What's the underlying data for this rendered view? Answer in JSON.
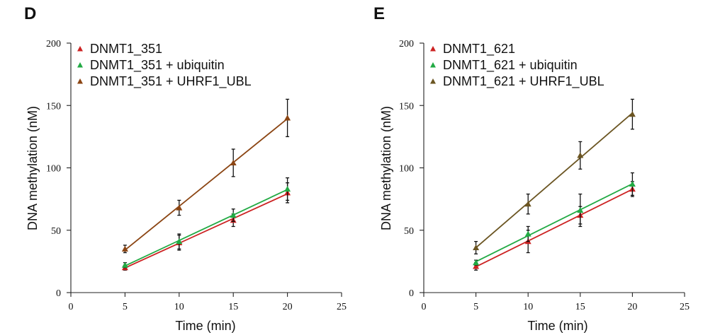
{
  "chart_data": [
    {
      "panel": "D",
      "type": "line",
      "xlabel": "Time (min)",
      "ylabel": "DNA methylation (nM)",
      "xlim": [
        0,
        25
      ],
      "ylim": [
        0,
        200
      ],
      "xticks": [
        0,
        5,
        10,
        15,
        20,
        25
      ],
      "yticks": [
        0,
        50,
        100,
        150,
        200
      ],
      "legend_position": "top-left",
      "series": [
        {
          "name": "DNMT1_351",
          "color": "#cc2222",
          "x": [
            5,
            10,
            15,
            20
          ],
          "y": [
            20,
            40,
            58,
            80
          ],
          "err": [
            2,
            6,
            5,
            8
          ]
        },
        {
          "name": "DNMT1_351 + ubiquitin",
          "color": "#22aa44",
          "x": [
            5,
            10,
            15,
            20
          ],
          "y": [
            22,
            41,
            62,
            83
          ],
          "err": [
            2,
            6,
            5,
            9
          ]
        },
        {
          "name": "DNMT1_351 + UHRF1_UBL",
          "color": "#8b4513",
          "x": [
            5,
            10,
            15,
            20
          ],
          "y": [
            35,
            68,
            104,
            140
          ],
          "err": [
            3,
            6,
            11,
            15
          ]
        }
      ]
    },
    {
      "panel": "E",
      "type": "line",
      "xlabel": "Time (min)",
      "ylabel": "DNA methylation (nM)",
      "xlim": [
        0,
        25
      ],
      "ylim": [
        0,
        200
      ],
      "xticks": [
        0,
        5,
        10,
        15,
        20,
        25
      ],
      "yticks": [
        0,
        50,
        100,
        150,
        200
      ],
      "legend_position": "top-left",
      "series": [
        {
          "name": "DNMT1_621",
          "color": "#cc2222",
          "x": [
            5,
            10,
            15,
            20
          ],
          "y": [
            21,
            41,
            62,
            83
          ],
          "err": [
            3,
            9,
            7,
            6
          ]
        },
        {
          "name": "DNMT1_621 + ubiquitin",
          "color": "#22aa44",
          "x": [
            5,
            10,
            15,
            20
          ],
          "y": [
            24,
            47,
            66,
            87
          ],
          "err": [
            2,
            6,
            13,
            9
          ]
        },
        {
          "name": "DNMT1_621 + UHRF1_UBL",
          "color": "#6b5522",
          "x": [
            5,
            10,
            15,
            20
          ],
          "y": [
            36,
            71,
            110,
            143
          ],
          "err": [
            5,
            8,
            11,
            12
          ]
        }
      ]
    }
  ]
}
